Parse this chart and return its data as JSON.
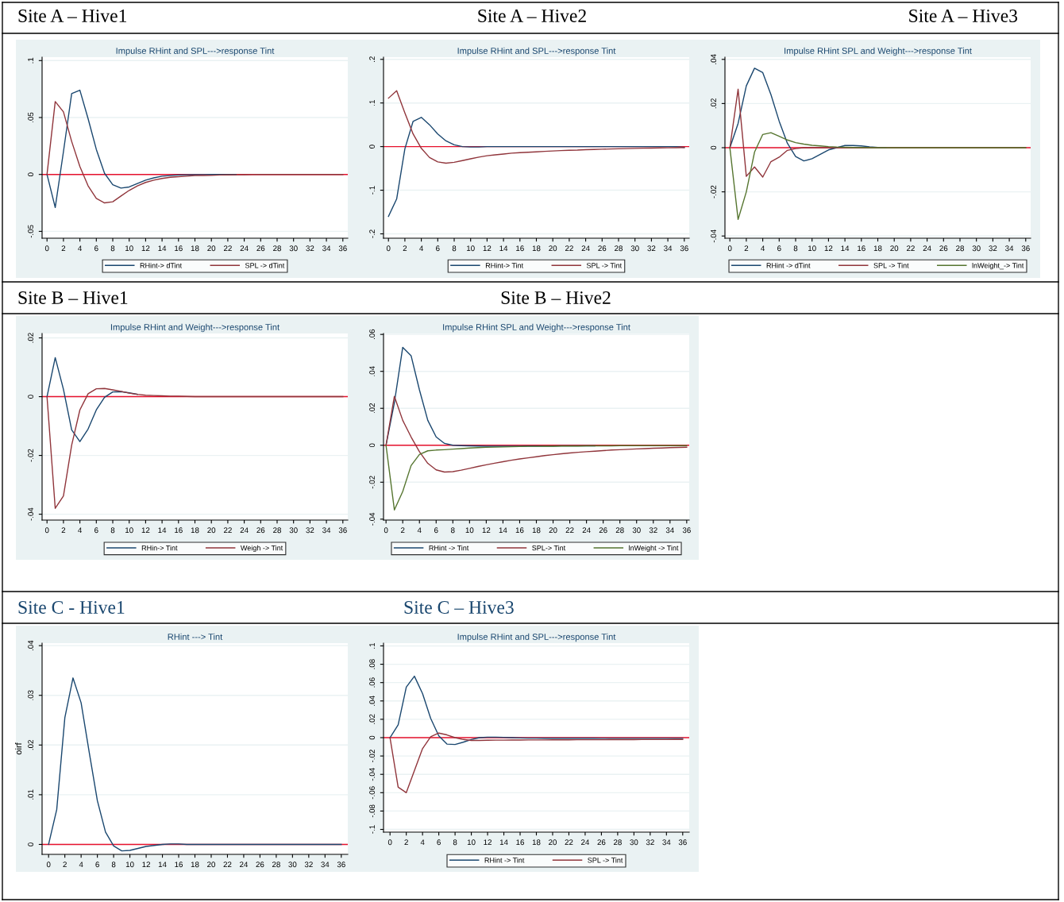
{
  "chart_data": [
    {
      "type": "line",
      "title": "Site A – Hive1",
      "subtitle": "Impulse RHint and SPL--->response Tint",
      "x": [
        0,
        1,
        2,
        3,
        4,
        5,
        6,
        7,
        8,
        9,
        10,
        11,
        12,
        13,
        14,
        15,
        16,
        17,
        18,
        19,
        20,
        21,
        22,
        23,
        24,
        25,
        26,
        27,
        28,
        29,
        30,
        31,
        32,
        33,
        34,
        35,
        36
      ],
      "series": [
        {
          "name": "RHint-> dTint",
          "color": "#1a476f",
          "values": [
            0,
            -0.029,
            0.02,
            0.071,
            0.074,
            0.049,
            0.022,
            0.001,
            -0.009,
            -0.012,
            -0.011,
            -0.008,
            -0.005,
            -0.003,
            -0.0015,
            -0.001,
            -0.0005,
            -0.0003,
            -0.0002,
            -0.0001,
            0,
            0,
            0,
            0,
            null,
            null,
            null,
            null,
            null,
            null,
            null,
            null,
            null,
            null,
            null,
            null,
            null
          ]
        },
        {
          "name": "SPL -> dTint",
          "color": "#90353b",
          "values": [
            0,
            0.064,
            0.055,
            0.029,
            0.007,
            -0.01,
            -0.021,
            -0.025,
            -0.024,
            -0.019,
            -0.014,
            -0.01,
            -0.007,
            -0.005,
            -0.0035,
            -0.0025,
            -0.002,
            -0.0015,
            -0.001,
            -0.001,
            -0.0008,
            -0.0005,
            -0.0004,
            -0.0003,
            -0.0002,
            -0.0001,
            0,
            0,
            0,
            0,
            0,
            0,
            0,
            0,
            0,
            0,
            0
          ]
        }
      ],
      "xlim": [
        -0.6,
        36.6
      ],
      "xticks": [
        0,
        2,
        4,
        6,
        8,
        10,
        12,
        14,
        16,
        18,
        20,
        22,
        24,
        26,
        28,
        30,
        32,
        34,
        36
      ],
      "ylim": [
        -0.056,
        0.103
      ],
      "yticks": [
        {
          "value": -0.05,
          "label": "-.05"
        },
        0,
        {
          "value": 0.05,
          "label": ".05"
        },
        {
          "value": 0.1,
          "label": ".1"
        }
      ],
      "ref_lines": [
        {
          "axis": "y",
          "value": 0,
          "color": "#e8112d"
        }
      ],
      "grid": "y",
      "legend": "bottom"
    },
    {
      "type": "line",
      "title": "Site A – Hive2",
      "subtitle": "Impulse RHint and SPL--->response Tint",
      "x": [
        0,
        1,
        2,
        3,
        4,
        5,
        6,
        7,
        8,
        9,
        10,
        11,
        12,
        13,
        14,
        15,
        16,
        17,
        18,
        19,
        20,
        21,
        22,
        23,
        24,
        25,
        26,
        27,
        28,
        29,
        30,
        31,
        32,
        33,
        34,
        35,
        36
      ],
      "series": [
        {
          "name": "RHint-> Tint",
          "color": "#1a476f",
          "values": [
            -0.16,
            -0.12,
            -0.005,
            0.058,
            0.067,
            0.05,
            0.029,
            0.013,
            0.004,
            0,
            -0.001,
            -0.001,
            0,
            0,
            0,
            0,
            0,
            0,
            0,
            0,
            0,
            0,
            0,
            0,
            0,
            0,
            0,
            0,
            0,
            0,
            0,
            0,
            0,
            0,
            0,
            0,
            -0.002
          ]
        },
        {
          "name": "SPL -> Tint",
          "color": "#90353b",
          "values": [
            0.111,
            0.128,
            0.077,
            0.029,
            -0.004,
            -0.025,
            -0.035,
            -0.038,
            -0.036,
            -0.032,
            -0.028,
            -0.024,
            -0.021,
            -0.019,
            -0.017,
            -0.015,
            -0.014,
            -0.013,
            -0.012,
            -0.011,
            -0.01,
            -0.009,
            -0.0085,
            -0.008,
            -0.007,
            -0.0065,
            -0.006,
            -0.0055,
            -0.005,
            -0.0045,
            -0.004,
            -0.0037,
            -0.0034,
            -0.003,
            -0.0028,
            -0.0025,
            -0.0023
          ]
        }
      ],
      "xlim": [
        -0.6,
        36.6
      ],
      "xticks": [
        0,
        2,
        4,
        6,
        8,
        10,
        12,
        14,
        16,
        18,
        20,
        22,
        24,
        26,
        28,
        30,
        32,
        34,
        36
      ],
      "ylim": [
        -0.21,
        0.205
      ],
      "yticks": [
        {
          "value": -0.2,
          "label": "-.2"
        },
        {
          "value": -0.1,
          "label": "-.1"
        },
        0,
        {
          "value": 0.1,
          "label": ".1"
        },
        {
          "value": 0.2,
          "label": ".2"
        }
      ],
      "ref_lines": [
        {
          "axis": "y",
          "value": 0,
          "color": "#e8112d"
        }
      ],
      "grid": "y",
      "legend": "bottom"
    },
    {
      "type": "line",
      "title": "Site A – Hive3",
      "subtitle": "Impulse RHint SPL and Weight--->response Tint",
      "x": [
        0,
        1,
        2,
        3,
        4,
        5,
        6,
        7,
        8,
        9,
        10,
        11,
        12,
        13,
        14,
        15,
        16,
        17,
        18,
        19,
        20,
        21,
        22,
        23,
        24,
        25,
        26,
        27,
        28,
        29,
        30,
        31,
        32,
        33,
        34,
        35,
        36
      ],
      "series": [
        {
          "name": "RHint -> dTint",
          "color": "#1a476f",
          "values": [
            0,
            0.011,
            0.028,
            0.036,
            0.034,
            0.024,
            0.012,
            0.002,
            -0.004,
            -0.006,
            -0.005,
            -0.003,
            -0.001,
            0,
            0.001,
            0.001,
            0.0008,
            0.0004,
            0.0001,
            0,
            null,
            null,
            null,
            null,
            null,
            null,
            null,
            null,
            null,
            null,
            null,
            null,
            null,
            null,
            null,
            null,
            null
          ]
        },
        {
          "name": "SPL -> Tint",
          "color": "#90353b",
          "values": [
            0,
            0.0265,
            -0.013,
            -0.0087,
            -0.0133,
            -0.0063,
            -0.0043,
            -0.0012,
            -0.0004,
            0,
            0,
            0,
            0,
            0,
            0,
            0,
            0,
            0,
            0,
            0,
            0,
            0,
            0,
            0,
            0,
            0,
            0,
            0,
            0,
            0,
            0,
            0,
            0,
            0,
            0,
            0,
            0
          ]
        },
        {
          "name": "lnWeight_-> Tint",
          "color": "#55752f",
          "values": [
            0,
            -0.0325,
            -0.02,
            -0.002,
            0.006,
            0.0068,
            0.0052,
            0.0035,
            0.0023,
            0.0016,
            0.0011,
            0.0008,
            0.0005,
            0.0003,
            0.0002,
            0.0001,
            0.0001,
            0,
            0,
            0,
            0,
            0,
            0,
            0,
            0,
            0,
            0,
            0,
            0,
            0,
            0,
            0,
            0,
            0,
            0,
            0,
            0
          ]
        }
      ],
      "xlim": [
        -0.6,
        36.6
      ],
      "xticks": [
        0,
        2,
        4,
        6,
        8,
        10,
        12,
        14,
        16,
        18,
        20,
        22,
        24,
        26,
        28,
        30,
        32,
        34,
        36
      ],
      "ylim": [
        -0.041,
        0.041
      ],
      "yticks": [
        {
          "value": -0.04,
          "label": "-.04"
        },
        {
          "value": -0.02,
          "label": "-.02"
        },
        0,
        {
          "value": 0.02,
          "label": ".02"
        },
        {
          "value": 0.04,
          "label": ".04"
        }
      ],
      "ref_lines": [
        {
          "axis": "y",
          "value": 0,
          "color": "#e8112d"
        }
      ],
      "grid": "y",
      "legend": "bottom"
    },
    {
      "type": "line",
      "title": "Site B – Hive1",
      "subtitle": "Impulse RHint and Weight--->response Tint",
      "x": [
        0,
        1,
        2,
        3,
        4,
        5,
        6,
        7,
        8,
        9,
        10,
        11,
        12,
        13,
        14,
        15,
        16,
        17,
        18,
        19,
        20,
        21,
        22,
        23,
        24,
        25,
        26,
        27,
        28,
        29,
        30,
        31,
        32,
        33,
        34,
        35,
        36
      ],
      "series": [
        {
          "name": "RHin-> Tint",
          "color": "#1a476f",
          "values": [
            0,
            0.0133,
            0.0025,
            -0.0113,
            -0.0153,
            -0.011,
            -0.0045,
            -0.0002,
            0.0016,
            0.0017,
            0.0013,
            0.0008,
            null,
            null,
            null,
            null,
            null,
            null,
            null,
            null,
            null,
            null,
            null,
            null,
            null,
            null,
            null,
            null,
            null,
            null,
            null,
            null,
            null,
            null,
            null,
            null,
            null
          ]
        },
        {
          "name": "Weigh -> Tint",
          "color": "#90353b",
          "values": [
            0,
            -0.038,
            -0.0338,
            -0.0165,
            -0.0045,
            0.001,
            0.0027,
            0.0028,
            0.0023,
            0.0018,
            0.0012,
            0.0008,
            0.0005,
            0.0004,
            0.0003,
            0.0002,
            0.0002,
            0.0001,
            0,
            0,
            0,
            0,
            0,
            0,
            0,
            0,
            0,
            0,
            0,
            0,
            0,
            0,
            0,
            0,
            0,
            0,
            0
          ]
        }
      ],
      "xlim": [
        -0.6,
        36.6
      ],
      "xticks": [
        0,
        2,
        4,
        6,
        8,
        10,
        12,
        14,
        16,
        18,
        20,
        22,
        24,
        26,
        28,
        30,
        32,
        34,
        36
      ],
      "ylim": [
        -0.042,
        0.0215
      ],
      "yticks": [
        {
          "value": -0.04,
          "label": "-.04"
        },
        {
          "value": -0.02,
          "label": "-.02"
        },
        0,
        {
          "value": 0.02,
          "label": ".02"
        }
      ],
      "ref_lines": [
        {
          "axis": "y",
          "value": 0,
          "color": "#e8112d"
        }
      ],
      "grid": "y",
      "legend": "bottom"
    },
    {
      "type": "line",
      "title": "Site B – Hive2",
      "subtitle": "Impulse RHint SPL and Weight--->response Tint",
      "x": [
        0,
        1,
        2,
        3,
        4,
        5,
        6,
        7,
        8,
        9,
        10,
        11,
        12,
        13,
        14,
        15,
        16,
        17,
        18,
        19,
        20,
        21,
        22,
        23,
        24,
        25,
        26,
        27,
        28,
        29,
        30,
        31,
        32,
        33,
        34,
        35,
        36
      ],
      "series": [
        {
          "name": "RHint -> Tint",
          "color": "#1a476f",
          "values": [
            0,
            0.023,
            0.053,
            0.0485,
            0.03,
            0.0135,
            0.0045,
            0.001,
            0,
            -0.0002,
            -0.0003,
            -0.0004,
            -0.0005,
            -0.0005,
            -0.0005,
            -0.0005,
            -0.0005,
            -0.0004,
            -0.0004,
            -0.0004,
            -0.0004,
            -0.0003,
            -0.0003,
            -0.0003,
            -0.0003,
            -0.0003,
            null,
            null,
            null,
            null,
            null,
            null,
            null,
            null,
            null,
            null,
            null
          ]
        },
        {
          "name": "SPL-> Tint",
          "color": "#90353b",
          "values": [
            0,
            0.0265,
            0.0135,
            0.0045,
            -0.0035,
            -0.0098,
            -0.0133,
            -0.0145,
            -0.0143,
            -0.0135,
            -0.0125,
            -0.0115,
            -0.0106,
            -0.0097,
            -0.0089,
            -0.0081,
            -0.0074,
            -0.0068,
            -0.0062,
            -0.0056,
            -0.0051,
            -0.0046,
            -0.0042,
            -0.0038,
            -0.0035,
            -0.0032,
            -0.0029,
            -0.0026,
            -0.0024,
            -0.0022,
            -0.002,
            -0.0018,
            -0.0016,
            -0.0015,
            -0.0013,
            -0.0012,
            -0.0011
          ]
        },
        {
          "name": "lnWeight -> Tint",
          "color": "#55752f",
          "values": [
            0,
            -0.035,
            -0.025,
            -0.011,
            -0.005,
            -0.003,
            -0.0026,
            -0.0024,
            -0.0021,
            -0.0018,
            -0.0015,
            -0.0013,
            -0.0011,
            -0.001,
            -0.0009,
            -0.0008,
            -0.0007,
            -0.0006,
            -0.0006,
            -0.0005,
            -0.0005,
            -0.0004,
            -0.0004,
            -0.0004,
            -0.0003,
            -0.0003,
            -0.0003,
            -0.0003,
            -0.0002,
            -0.0002,
            -0.0002,
            -0.0002,
            -0.0002,
            -0.0002,
            -0.0002,
            -0.0002,
            -0.0002
          ]
        }
      ],
      "xlim": [
        -0.3,
        36.3
      ],
      "xticks": [
        0,
        2,
        4,
        6,
        8,
        10,
        12,
        14,
        16,
        18,
        20,
        22,
        24,
        26,
        28,
        30,
        32,
        34,
        36
      ],
      "ylim": [
        -0.0405,
        0.0605
      ],
      "yticks": [
        {
          "value": -0.04,
          "label": "-.04"
        },
        {
          "value": -0.02,
          "label": "-.02"
        },
        0,
        {
          "value": 0.02,
          "label": ".02"
        },
        {
          "value": 0.04,
          "label": ".04"
        },
        {
          "value": 0.06,
          "label": ".06"
        }
      ],
      "ref_lines": [
        {
          "axis": "y",
          "value": 0,
          "color": "#e8112d"
        }
      ],
      "grid": "y",
      "legend": "bottom"
    },
    {
      "type": "line",
      "title": "Site C - Hive1",
      "subtitle": "RHint ---> Tint",
      "ylabel": "oirf",
      "x": [
        0,
        1,
        2,
        3,
        4,
        5,
        6,
        7,
        8,
        9,
        10,
        11,
        12,
        13,
        14,
        15,
        16,
        17,
        18,
        19,
        20,
        21,
        22,
        23,
        24,
        25,
        26,
        27,
        28,
        29,
        30,
        31,
        32,
        33,
        34,
        35,
        36
      ],
      "series": [
        {
          "color": "#1a476f",
          "values": [
            0,
            0.007,
            0.0255,
            0.0335,
            0.0285,
            0.0185,
            0.0088,
            0.0025,
            -0.0003,
            -0.0013,
            -0.0012,
            -0.0008,
            -0.0004,
            -0.0002,
            0,
            0.0001,
            0.0001,
            0,
            0,
            0,
            0,
            0,
            0,
            0,
            0,
            0,
            0,
            0,
            0,
            0,
            0,
            0,
            0,
            0,
            0,
            0,
            0
          ]
        }
      ],
      "xlim": [
        -0.8,
        36.8
      ],
      "xticks": [
        0,
        2,
        4,
        6,
        8,
        10,
        12,
        14,
        16,
        18,
        20,
        22,
        24,
        26,
        28,
        30,
        32,
        34,
        36
      ],
      "ylim": [
        -0.002,
        0.0405
      ],
      "yticks": [
        0,
        {
          "value": 0.01,
          "label": ".01"
        },
        {
          "value": 0.02,
          "label": ".02"
        },
        {
          "value": 0.03,
          "label": ".03"
        },
        {
          "value": 0.04,
          "label": ".04"
        }
      ],
      "ref_lines": [
        {
          "axis": "y",
          "value": 0,
          "color": "#e8112d"
        }
      ],
      "grid": "y",
      "legend": false
    },
    {
      "type": "line",
      "title": "Site C – Hive3",
      "subtitle": "Impulse RHint and SPL--->response Tint",
      "x": [
        0,
        1,
        2,
        3,
        4,
        5,
        6,
        7,
        8,
        9,
        10,
        11,
        12,
        13,
        14,
        15,
        16,
        17,
        18,
        19,
        20,
        21,
        22,
        23,
        24,
        25,
        26,
        27,
        28,
        29,
        30,
        31,
        32,
        33,
        34,
        35,
        36
      ],
      "series": [
        {
          "name": "RHint -> Tint",
          "color": "#1a476f",
          "values": [
            0,
            0.014,
            0.055,
            0.067,
            0.048,
            0.021,
            0.002,
            -0.007,
            -0.0075,
            -0.005,
            -0.002,
            0,
            0.0005,
            0.0005,
            0.0003,
            0,
            -0.0003,
            -0.0005,
            -0.0005,
            -0.0006,
            -0.0006,
            -0.0006,
            -0.0007,
            -0.0007,
            -0.0007,
            -0.0007,
            -0.0008,
            -0.0008,
            -0.0008,
            -0.0008,
            -0.0008,
            -0.0008,
            -0.0008,
            -0.0008,
            -0.0008,
            -0.0008,
            -0.0008
          ]
        },
        {
          "name": "SPL -> Tint",
          "color": "#90353b",
          "values": [
            0,
            -0.054,
            -0.06,
            -0.036,
            -0.012,
            0.001,
            0.005,
            0.003,
            0,
            -0.002,
            -0.003,
            -0.003,
            -0.0028,
            -0.0027,
            -0.0027,
            -0.0026,
            -0.0026,
            -0.0025,
            -0.0025,
            -0.0025,
            -0.0024,
            -0.0024,
            -0.0024,
            -0.0023,
            -0.0023,
            -0.0023,
            -0.0023,
            -0.0022,
            -0.0022,
            -0.0022,
            -0.0022,
            -0.0021,
            -0.0021,
            -0.0021,
            -0.0021,
            -0.002,
            -0.002
          ]
        }
      ],
      "xlim": [
        -0.8,
        36.8
      ],
      "xticks": [
        0,
        2,
        4,
        6,
        8,
        10,
        12,
        14,
        16,
        18,
        20,
        22,
        24,
        26,
        28,
        30,
        32,
        34,
        36
      ],
      "ylim": [
        -0.103,
        0.103
      ],
      "yticks": [
        {
          "value": -0.1,
          "label": "-.1"
        },
        {
          "value": -0.08,
          "label": "-.08"
        },
        {
          "value": -0.06,
          "label": "-.06"
        },
        {
          "value": -0.04,
          "label": "-.04"
        },
        {
          "value": -0.02,
          "label": "-.02"
        },
        0,
        {
          "value": 0.02,
          "label": ".02"
        },
        {
          "value": 0.04,
          "label": ".04"
        },
        {
          "value": 0.06,
          "label": ".06"
        },
        {
          "value": 0.08,
          "label": ".08"
        },
        {
          "value": 0.1,
          "label": ".1"
        }
      ],
      "ref_lines": [
        {
          "axis": "y",
          "value": 0,
          "color": "#e8112d"
        }
      ],
      "grid": "y",
      "legend": "bottom"
    }
  ]
}
